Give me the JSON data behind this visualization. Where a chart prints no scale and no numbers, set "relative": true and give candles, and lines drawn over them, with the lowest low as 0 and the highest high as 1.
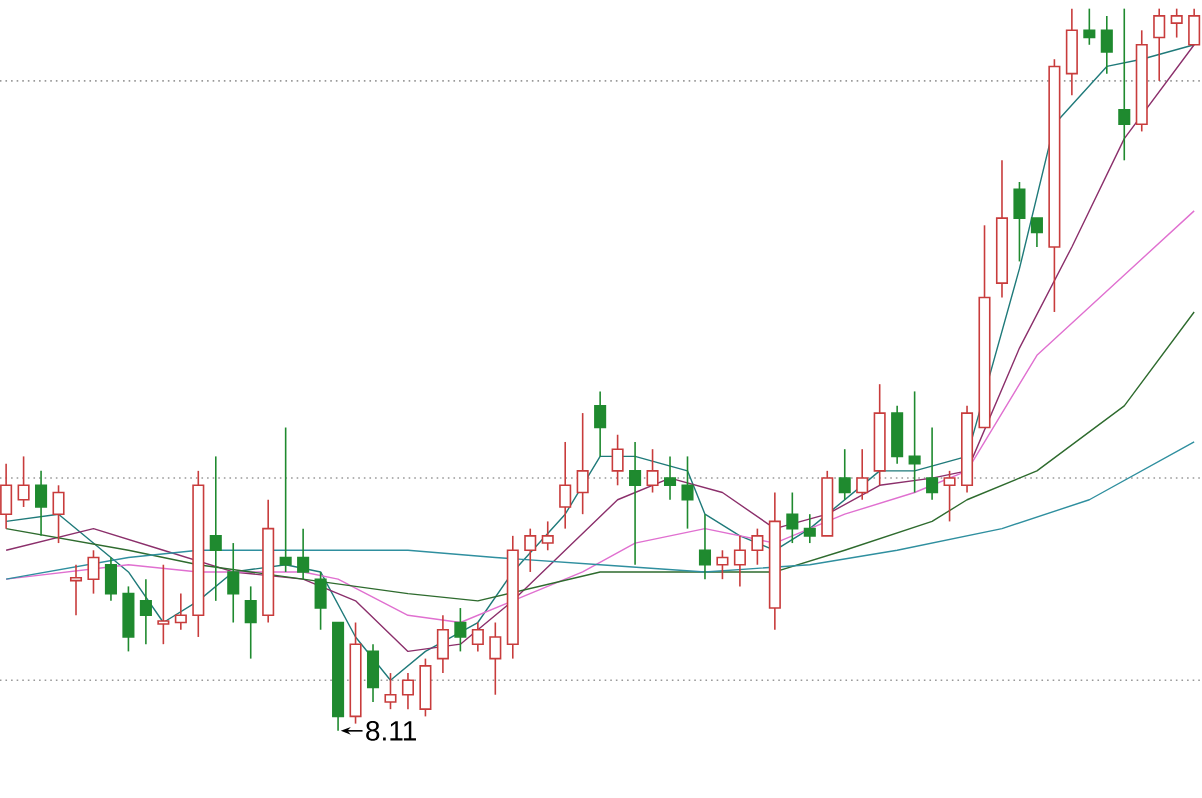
{
  "chart_data": {
    "type": "candlestick",
    "relative": true,
    "categories": [
      null,
      null,
      null,
      null,
      null,
      null,
      null,
      null,
      null,
      null,
      null,
      null,
      null,
      null,
      null,
      null,
      null,
      null,
      null,
      null,
      null,
      null,
      null,
      null,
      null,
      null,
      null,
      null,
      null,
      null,
      null,
      null,
      null,
      null,
      null,
      null,
      null,
      null,
      null,
      null,
      null,
      null,
      null,
      null,
      null,
      null,
      null,
      null,
      null,
      null,
      null,
      null,
      null,
      null,
      null,
      null,
      null,
      null,
      null,
      null,
      null,
      null,
      null,
      null,
      null,
      null,
      null,
      null,
      null
    ],
    "ohlc": [
      [
        0.3,
        0.37,
        0.28,
        0.34
      ],
      [
        0.32,
        0.38,
        0.31,
        0.34
      ],
      [
        0.34,
        0.36,
        0.27,
        0.31
      ],
      [
        0.3,
        0.34,
        0.26,
        0.33
      ],
      [
        0.21,
        0.23,
        0.16,
        0.21
      ],
      [
        0.21,
        0.25,
        0.19,
        0.24
      ],
      [
        0.23,
        0.24,
        0.18,
        0.19
      ],
      [
        0.19,
        0.2,
        0.11,
        0.13
      ],
      [
        0.18,
        0.21,
        0.12,
        0.16
      ],
      [
        0.15,
        0.23,
        0.12,
        0.15
      ],
      [
        0.15,
        0.19,
        0.14,
        0.16
      ],
      [
        0.16,
        0.36,
        0.13,
        0.34
      ],
      [
        0.27,
        0.38,
        0.18,
        0.25
      ],
      [
        0.22,
        0.26,
        0.15,
        0.19
      ],
      [
        0.18,
        0.2,
        0.1,
        0.15
      ],
      [
        0.16,
        0.32,
        0.15,
        0.28
      ],
      [
        0.24,
        0.42,
        0.22,
        0.23
      ],
      [
        0.24,
        0.28,
        0.21,
        0.22
      ],
      [
        0.21,
        0.22,
        0.14,
        0.17
      ],
      [
        0.15,
        0.15,
        0,
        0.02
      ],
      [
        0.02,
        0.15,
        0.01,
        0.12
      ],
      [
        0.11,
        0.12,
        0.04,
        0.06
      ],
      [
        0.04,
        0.08,
        0.03,
        0.05
      ],
      [
        0.05,
        0.08,
        0.03,
        0.07
      ],
      [
        0.03,
        0.1,
        0.02,
        0.09
      ],
      [
        0.1,
        0.16,
        0.08,
        0.14
      ],
      [
        0.15,
        0.17,
        0.11,
        0.13
      ],
      [
        0.12,
        0.15,
        0.11,
        0.14
      ],
      [
        0.1,
        0.15,
        0.05,
        0.13
      ],
      [
        0.12,
        0.27,
        0.1,
        0.25
      ],
      [
        0.25,
        0.28,
        0.22,
        0.27
      ],
      [
        0.26,
        0.29,
        0.25,
        0.27
      ],
      [
        0.31,
        0.4,
        0.28,
        0.34
      ],
      [
        0.33,
        0.44,
        0.3,
        0.36
      ],
      [
        0.45,
        0.47,
        0.38,
        0.42
      ],
      [
        0.36,
        0.41,
        0.34,
        0.39
      ],
      [
        0.36,
        0.4,
        0.23,
        0.34
      ],
      [
        0.34,
        0.39,
        0.33,
        0.36
      ],
      [
        0.35,
        0.38,
        0.32,
        0.34
      ],
      [
        0.34,
        0.38,
        0.28,
        0.32
      ],
      [
        0.25,
        0.3,
        0.21,
        0.23
      ],
      [
        0.23,
        0.25,
        0.21,
        0.24
      ],
      [
        0.23,
        0.27,
        0.2,
        0.25
      ],
      [
        0.25,
        0.28,
        0.23,
        0.27
      ],
      [
        0.17,
        0.33,
        0.14,
        0.29
      ],
      [
        0.3,
        0.33,
        0.26,
        0.28
      ],
      [
        0.28,
        0.3,
        0.26,
        0.27
      ],
      [
        0.27,
        0.36,
        0.27,
        0.35
      ],
      [
        0.35,
        0.39,
        0.32,
        0.33
      ],
      [
        0.33,
        0.39,
        0.32,
        0.35
      ],
      [
        0.36,
        0.48,
        0.34,
        0.44
      ],
      [
        0.44,
        0.45,
        0.37,
        0.38
      ],
      [
        0.38,
        0.47,
        0.33,
        0.37
      ],
      [
        0.35,
        0.42,
        0.32,
        0.33
      ],
      [
        0.34,
        0.36,
        0.29,
        0.35
      ],
      [
        0.34,
        0.45,
        0.33,
        0.44
      ],
      [
        0.42,
        0.7,
        0.42,
        0.6
      ],
      [
        0.62,
        0.79,
        0.6,
        0.71
      ],
      [
        0.75,
        0.76,
        0.65,
        0.71
      ],
      [
        0.71,
        0.71,
        0.67,
        0.69
      ],
      [
        0.67,
        0.93,
        0.58,
        0.92
      ],
      [
        0.91,
        1.0,
        0.88,
        0.97
      ],
      [
        0.97,
        1.0,
        0.95,
        0.96
      ],
      [
        0.97,
        0.99,
        0.91,
        0.94
      ],
      [
        0.86,
        1.0,
        0.79,
        0.84
      ],
      [
        0.84,
        0.97,
        0.83,
        0.95
      ],
      [
        0.96,
        1.0,
        0.9,
        0.99
      ],
      [
        0.98,
        1.0,
        0.96,
        0.99
      ],
      [
        0.95,
        1.0,
        0.95,
        0.99
      ]
    ],
    "series": [
      {
        "type": "line",
        "color": "#1f7a7a",
        "values": [
          0.29,
          null,
          null,
          0.3,
          null,
          null,
          null,
          0.22,
          null,
          0.15,
          null,
          0.18,
          null,
          0.22,
          null,
          null,
          0.23,
          null,
          0.22,
          null,
          0.13,
          null,
          0.07,
          null,
          0.11,
          null,
          null,
          0.15,
          null,
          0.22,
          null,
          null,
          0.3,
          null,
          0.38,
          null,
          0.38,
          null,
          null,
          0.36,
          0.3,
          null,
          0.27,
          null,
          0.25,
          null,
          0.28,
          null,
          0.32,
          null,
          0.36,
          null,
          0.36,
          null,
          null,
          0.38,
          null,
          null,
          0.64,
          null,
          0.84,
          null,
          null,
          0.92,
          null,
          0.93,
          null,
          null,
          0.95
        ]
      },
      {
        "type": "line",
        "color": "#8b2f6b",
        "values": [
          0.25,
          null,
          null,
          null,
          null,
          0.28,
          null,
          null,
          null,
          0.25,
          null,
          null,
          null,
          0.22,
          null,
          null,
          null,
          0.21,
          null,
          null,
          0.18,
          null,
          null,
          0.11,
          null,
          null,
          0.12,
          null,
          null,
          0.18,
          null,
          null,
          0.25,
          null,
          null,
          0.32,
          null,
          null,
          0.35,
          null,
          null,
          0.33,
          null,
          null,
          0.28,
          null,
          null,
          0.3,
          null,
          null,
          0.34,
          null,
          null,
          0.35,
          null,
          0.36,
          null,
          null,
          0.53,
          null,
          null,
          0.67,
          null,
          null,
          0.82,
          null,
          null,
          null,
          0.95
        ]
      },
      {
        "type": "line",
        "color": "#e070d0",
        "values": [
          0.21,
          null,
          null,
          null,
          null,
          null,
          null,
          0.23,
          null,
          null,
          null,
          0.22,
          null,
          null,
          null,
          null,
          null,
          0.22,
          null,
          0.21,
          null,
          null,
          null,
          0.16,
          null,
          null,
          0.15,
          null,
          null,
          0.18,
          null,
          null,
          null,
          0.22,
          null,
          null,
          0.26,
          null,
          null,
          null,
          0.28,
          null,
          null,
          null,
          0.26,
          null,
          null,
          null,
          0.3,
          null,
          null,
          null,
          0.33,
          null,
          null,
          0.36,
          null,
          null,
          null,
          0.52,
          null,
          null,
          null,
          null,
          null,
          null,
          null,
          null,
          0.72
        ]
      },
      {
        "type": "line",
        "color": "#2e6b2e",
        "values": [
          0.28,
          null,
          null,
          null,
          null,
          null,
          null,
          0.25,
          null,
          null,
          null,
          0.23,
          null,
          null,
          null,
          null,
          null,
          0.21,
          null,
          null,
          null,
          null,
          null,
          0.19,
          null,
          null,
          null,
          0.18,
          null,
          null,
          null,
          null,
          null,
          null,
          0.22,
          null,
          null,
          null,
          null,
          null,
          0.22,
          null,
          null,
          null,
          0.22,
          null,
          null,
          null,
          0.25,
          null,
          null,
          null,
          null,
          0.29,
          null,
          0.32,
          null,
          null,
          null,
          0.36,
          null,
          null,
          null,
          null,
          0.45,
          null,
          null,
          null,
          0.58
        ]
      },
      {
        "type": "line",
        "color": "#2f8f9f",
        "values": [
          0.21,
          null,
          null,
          null,
          null,
          null,
          null,
          0.24,
          null,
          null,
          null,
          0.25,
          null,
          null,
          null,
          null,
          null,
          0.25,
          null,
          null,
          null,
          null,
          null,
          0.25,
          null,
          null,
          null,
          null,
          0.24,
          null,
          null,
          null,
          null,
          null,
          0.23,
          null,
          null,
          null,
          null,
          null,
          0.22,
          null,
          null,
          null,
          null,
          null,
          0.23,
          null,
          null,
          null,
          null,
          0.25,
          null,
          null,
          null,
          null,
          null,
          0.28,
          null,
          null,
          null,
          null,
          0.32,
          null,
          null,
          null,
          null,
          null,
          0.4
        ]
      }
    ],
    "ref_lines": [
      {
        "axis": "y",
        "value": 0.9,
        "color": "#999999",
        "line_style": "dotted"
      },
      {
        "axis": "y",
        "value": 0.35,
        "color": "#999999",
        "line_style": "dotted"
      },
      {
        "axis": "y",
        "value": 0.07,
        "color": "#999999",
        "line_style": "dotted"
      }
    ],
    "annotations": [
      "8.11"
    ]
  }
}
